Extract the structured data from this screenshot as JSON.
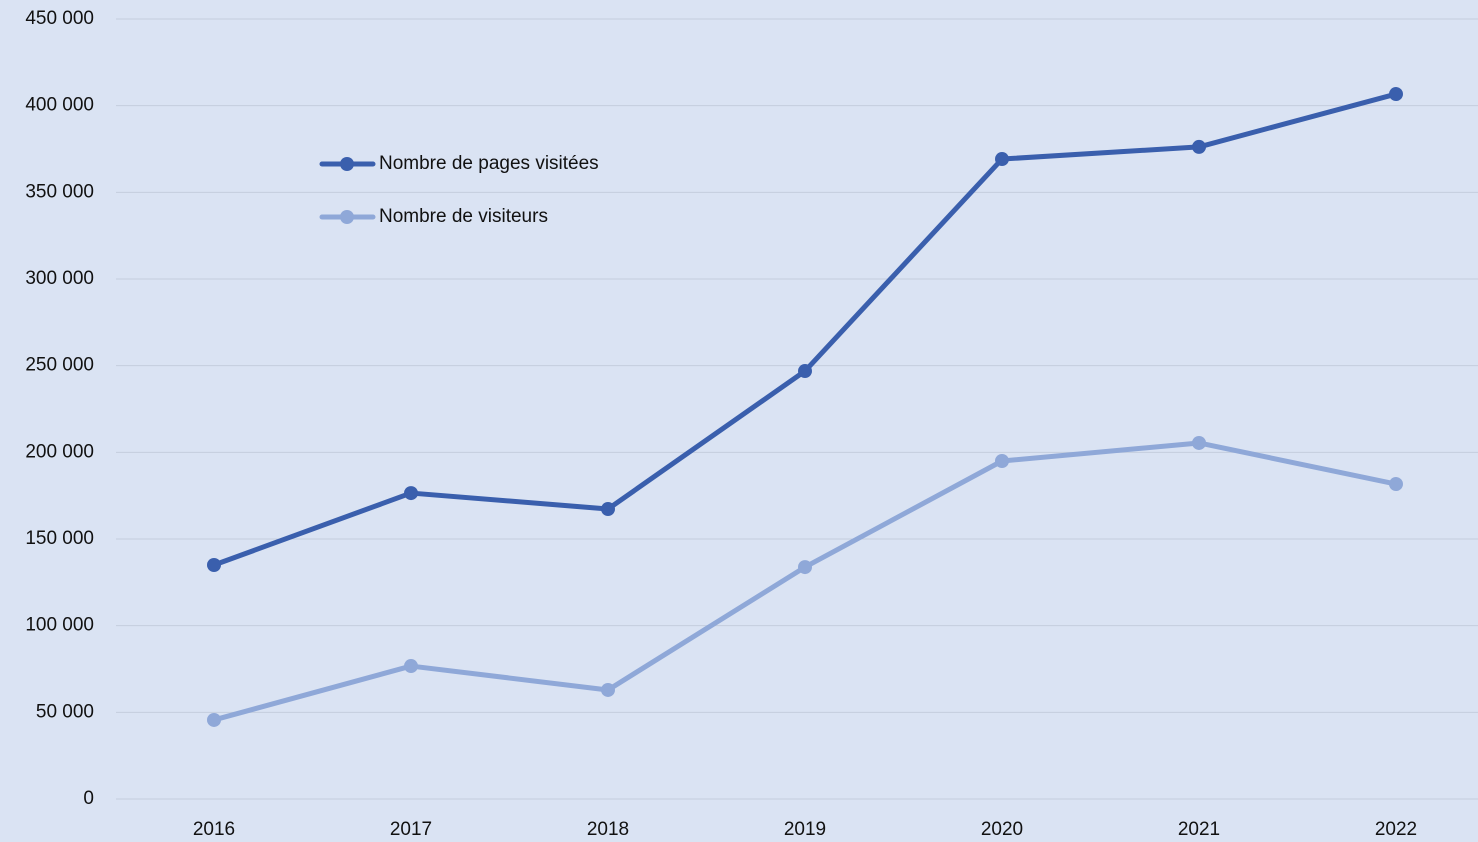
{
  "chart_data": {
    "type": "line",
    "categories": [
      "2016",
      "2017",
      "2018",
      "2019",
      "2020",
      "2021",
      "2022"
    ],
    "series": [
      {
        "name": "Nombre de pages visitées",
        "color": "#3a5fad",
        "values": [
          135000,
          176500,
          167300,
          246900,
          369200,
          376200,
          406700
        ]
      },
      {
        "name": "Nombre de visiteurs",
        "color": "#8fa8d8",
        "values": [
          45600,
          76700,
          62900,
          133800,
          195000,
          205400,
          181700
        ]
      }
    ],
    "ylim": [
      0,
      450000
    ],
    "yticks": [
      0,
      {
        "value": 50000,
        "label": "50 000"
      },
      {
        "value": 100000,
        "label": "100 000"
      },
      {
        "value": 150000,
        "label": "150 000"
      },
      {
        "value": 200000,
        "label": "200 000"
      },
      {
        "value": 250000,
        "label": "250 000"
      },
      {
        "value": 300000,
        "label": "300 000"
      },
      {
        "value": 350000,
        "label": "350 000"
      },
      {
        "value": 400000,
        "label": "400 000"
      },
      {
        "value": 450000,
        "label": "450 000"
      }
    ],
    "grid": true,
    "legend": "upper-left"
  }
}
